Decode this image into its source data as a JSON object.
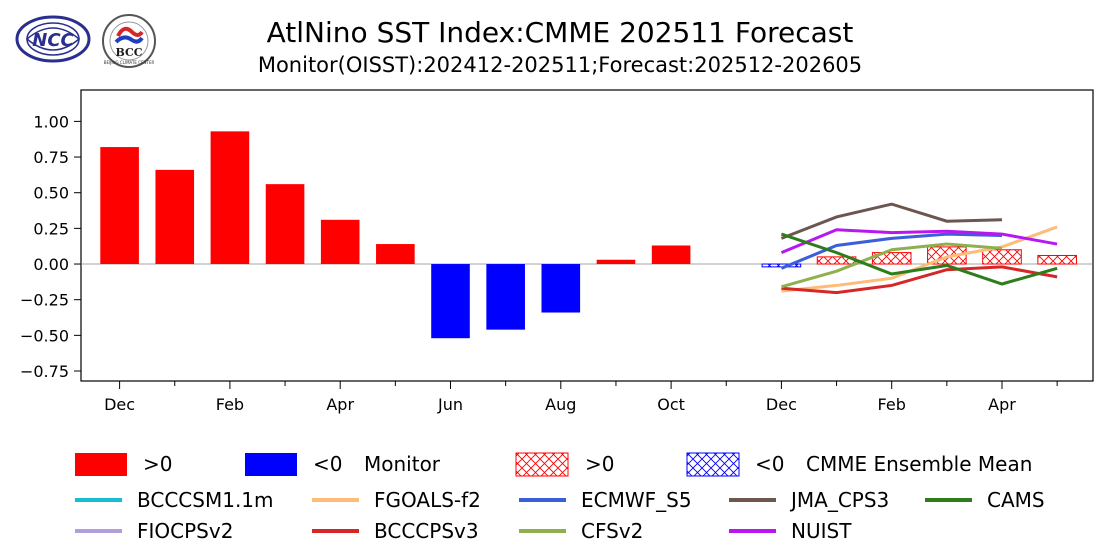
{
  "title": "AtlNino SST Index:CMME 202511 Forecast",
  "subtitle": "Monitor(OISST):202412-202511;Forecast:202512-202605",
  "logos": {
    "left_text": "NCC",
    "right_text": "BCC",
    "right_sub": "BEIJING CLIMATE CENTER"
  },
  "chart_data": {
    "type": "bar",
    "title": "AtlNino SST Index:CMME 202511 Forecast",
    "xlabel": "",
    "ylabel": "",
    "ylim": [
      -0.82,
      1.22
    ],
    "yticks": [
      -0.75,
      -0.5,
      -0.25,
      0.0,
      0.25,
      0.5,
      0.75,
      1.0
    ],
    "ytick_labels": [
      "−0.75",
      "−0.50",
      "−0.25",
      "0.00",
      "0.25",
      "0.50",
      "0.75",
      "1.00"
    ],
    "xtick_labels": [
      {
        "pos": 1,
        "label": "Dec"
      },
      {
        "pos": 3,
        "label": "Feb"
      },
      {
        "pos": 5,
        "label": "Apr"
      },
      {
        "pos": 7,
        "label": "Jun"
      },
      {
        "pos": 9,
        "label": "Aug"
      },
      {
        "pos": 11,
        "label": "Oct"
      },
      {
        "pos": 13,
        "label": "Dec"
      },
      {
        "pos": 15,
        "label": "Feb"
      },
      {
        "pos": 17,
        "label": "Apr"
      }
    ],
    "minor_ticks": [
      2,
      4,
      6,
      8,
      10,
      12,
      14,
      16,
      18
    ],
    "xlim": [
      0.3,
      18.65
    ],
    "zero_line": true,
    "monitor": {
      "label": "Monitor",
      "months": [
        1,
        2,
        3,
        4,
        5,
        6,
        7,
        8,
        9,
        10,
        11
      ],
      "values": [
        0.82,
        0.66,
        0.93,
        0.56,
        0.31,
        0.14,
        -0.52,
        -0.46,
        -0.34,
        0.03,
        0.13
      ],
      "pos_color": "#ff0000",
      "neg_color": "#0000ff"
    },
    "ensemble_mean": {
      "label": "CMME Ensemble Mean",
      "months": [
        13,
        14,
        15,
        16,
        17,
        18
      ],
      "values": [
        -0.02,
        0.05,
        0.08,
        0.12,
        0.1,
        0.06
      ]
    },
    "series": [
      {
        "name": "BCCCSM1.1m",
        "color": "#17becf",
        "x": [
          13,
          14,
          15,
          16,
          17,
          18
        ],
        "values": [
          null,
          null,
          null,
          null,
          null,
          null
        ]
      },
      {
        "name": "FIOCPSv2",
        "color": "#b39ddb",
        "x": [
          13,
          14,
          15,
          16,
          17,
          18
        ],
        "values": [
          null,
          null,
          null,
          null,
          null,
          null
        ]
      },
      {
        "name": "FGOALS-f2",
        "color": "#ffbb78",
        "x": [
          13,
          14,
          15,
          16,
          17,
          18
        ],
        "values": [
          -0.19,
          -0.15,
          -0.1,
          0.05,
          0.12,
          0.26
        ]
      },
      {
        "name": "BCCCPSv3",
        "color": "#d62728",
        "x": [
          13,
          14,
          15,
          16,
          17,
          18
        ],
        "values": [
          -0.17,
          -0.2,
          -0.15,
          -0.04,
          -0.02,
          -0.09
        ]
      },
      {
        "name": "ECMWF_S5",
        "color": "#3a5fd9",
        "x": [
          13,
          14,
          15,
          16,
          17,
          18
        ],
        "values": [
          -0.03,
          0.13,
          0.18,
          0.21,
          0.2,
          null
        ]
      },
      {
        "name": "CFSv2",
        "color": "#8fb04e",
        "x": [
          13,
          14,
          15,
          16,
          17,
          18
        ],
        "values": [
          -0.16,
          -0.05,
          0.1,
          0.14,
          0.11,
          null
        ]
      },
      {
        "name": "JMA_CPS3",
        "color": "#6d5550",
        "x": [
          13,
          14,
          15,
          16,
          17,
          18
        ],
        "values": [
          0.18,
          0.33,
          0.42,
          0.3,
          0.31,
          null
        ]
      },
      {
        "name": "NUIST",
        "color": "#b817f0",
        "x": [
          13,
          14,
          15,
          16,
          17,
          18
        ],
        "values": [
          0.08,
          0.24,
          0.22,
          0.23,
          0.21,
          0.14
        ]
      },
      {
        "name": "CAMS",
        "color": "#2e7d1c",
        "x": [
          13,
          14,
          15,
          16,
          17,
          18
        ],
        "values": [
          0.21,
          0.08,
          -0.07,
          -0.01,
          -0.14,
          -0.03
        ]
      }
    ],
    "legend": {
      "gt0": ">0",
      "lt0": "<0",
      "monitor_label": "Monitor",
      "ensemble_label": "CMME Ensemble Mean",
      "placement": "bottom"
    }
  }
}
